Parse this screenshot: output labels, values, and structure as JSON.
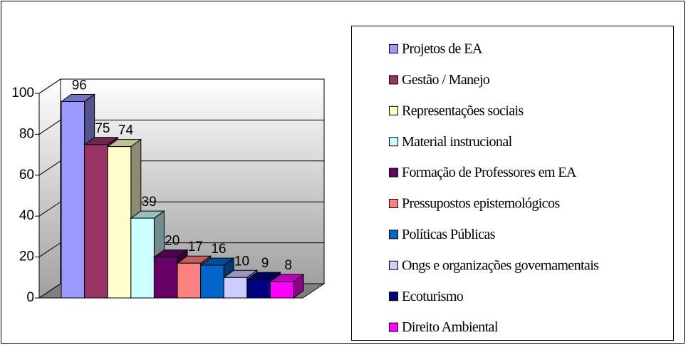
{
  "chart_data": {
    "type": "bar3d",
    "categories": [
      "Projetos de EA",
      "Gestão / Manejo",
      "Representações sociais",
      "Material instrucional",
      "Formação de Professores em EA",
      "Pressupostos epistemológicos",
      "Políticas Públicas",
      "Ongs e organizações governamentais",
      "Ecoturismo",
      "Direito Ambiental"
    ],
    "values": [
      96,
      75,
      74,
      39,
      20,
      17,
      16,
      10,
      9,
      8
    ],
    "colors": [
      "#9999ff",
      "#993366",
      "#ffffcc",
      "#ccffff",
      "#660066",
      "#ff8080",
      "#0066cc",
      "#ccccff",
      "#000080",
      "#ff00ff"
    ],
    "ylim": [
      0,
      100
    ],
    "yticks": [
      0,
      20,
      40,
      60,
      80,
      100
    ],
    "grid": true,
    "legend": "right"
  }
}
